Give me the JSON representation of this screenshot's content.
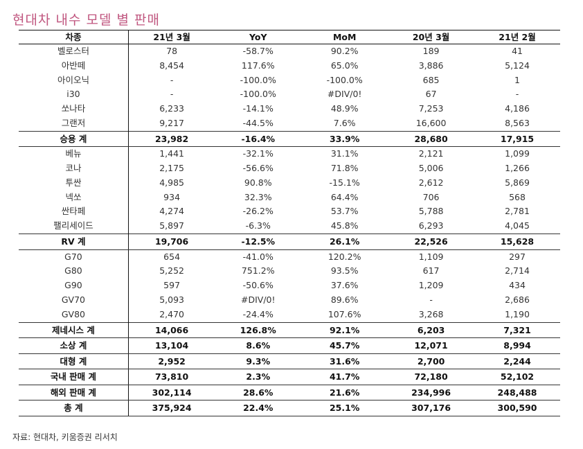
{
  "title": "현대차 내수 모델 별 판매",
  "table": {
    "headers": [
      "차종",
      "21년 3월",
      "YoY",
      "MoM",
      "20년 3월",
      "21년 2월"
    ],
    "rows": [
      {
        "cells": [
          "벨로스터",
          "78",
          "-58.7%",
          "90.2%",
          "189",
          "41"
        ],
        "total": false
      },
      {
        "cells": [
          "아반떼",
          "8,454",
          "117.6%",
          "65.0%",
          "3,886",
          "5,124"
        ],
        "total": false
      },
      {
        "cells": [
          "아이오닉",
          "-",
          "-100.0%",
          "-100.0%",
          "685",
          "1"
        ],
        "total": false
      },
      {
        "cells": [
          "i30",
          "-",
          "-100.0%",
          "#DIV/0!",
          "67",
          "-"
        ],
        "total": false
      },
      {
        "cells": [
          "쏘나타",
          "6,233",
          "-14.1%",
          "48.9%",
          "7,253",
          "4,186"
        ],
        "total": false
      },
      {
        "cells": [
          "그랜저",
          "9,217",
          "-44.5%",
          "7.6%",
          "16,600",
          "8,563"
        ],
        "total": false
      },
      {
        "cells": [
          "승용 계",
          "23,982",
          "-16.4%",
          "33.9%",
          "28,680",
          "17,915"
        ],
        "total": true
      },
      {
        "cells": [
          "베뉴",
          "1,441",
          "-32.1%",
          "31.1%",
          "2,121",
          "1,099"
        ],
        "total": false
      },
      {
        "cells": [
          "코나",
          "2,175",
          "-56.6%",
          "71.8%",
          "5,006",
          "1,266"
        ],
        "total": false
      },
      {
        "cells": [
          "투싼",
          "4,985",
          "90.8%",
          "-15.1%",
          "2,612",
          "5,869"
        ],
        "total": false
      },
      {
        "cells": [
          "넥쏘",
          "934",
          "32.3%",
          "64.4%",
          "706",
          "568"
        ],
        "total": false
      },
      {
        "cells": [
          "싼타페",
          "4,274",
          "-26.2%",
          "53.7%",
          "5,788",
          "2,781"
        ],
        "total": false
      },
      {
        "cells": [
          "팰리세이드",
          "5,897",
          "-6.3%",
          "45.8%",
          "6,293",
          "4,045"
        ],
        "total": false
      },
      {
        "cells": [
          "RV 계",
          "19,706",
          "-12.5%",
          "26.1%",
          "22,526",
          "15,628"
        ],
        "total": true
      },
      {
        "cells": [
          "G70",
          "654",
          "-41.0%",
          "120.2%",
          "1,109",
          "297"
        ],
        "total": false
      },
      {
        "cells": [
          "G80",
          "5,252",
          "751.2%",
          "93.5%",
          "617",
          "2,714"
        ],
        "total": false
      },
      {
        "cells": [
          "G90",
          "597",
          "-50.6%",
          "37.6%",
          "1,209",
          "434"
        ],
        "total": false
      },
      {
        "cells": [
          "GV70",
          "5,093",
          "#DIV/0!",
          "89.6%",
          "-",
          "2,686"
        ],
        "total": false
      },
      {
        "cells": [
          "GV80",
          "2,470",
          "-24.4%",
          "107.6%",
          "3,268",
          "1,190"
        ],
        "total": false
      },
      {
        "cells": [
          "제네시스 계",
          "14,066",
          "126.8%",
          "92.1%",
          "6,203",
          "7,321"
        ],
        "total": true
      },
      {
        "cells": [
          "소상 계",
          "13,104",
          "8.6%",
          "45.7%",
          "12,071",
          "8,994"
        ],
        "total": true
      },
      {
        "cells": [
          "대형 계",
          "2,952",
          "9.3%",
          "31.6%",
          "2,700",
          "2,244"
        ],
        "total": true
      },
      {
        "cells": [
          "국내 판매 계",
          "73,810",
          "2.3%",
          "41.7%",
          "72,180",
          "52,102"
        ],
        "total": true
      },
      {
        "cells": [
          "해외 판매 계",
          "302,114",
          "28.6%",
          "21.6%",
          "234,996",
          "248,488"
        ],
        "total": true
      },
      {
        "cells": [
          "총 계",
          "375,924",
          "22.4%",
          "25.1%",
          "307,176",
          "300,590"
        ],
        "total": true
      }
    ]
  },
  "source": "자료: 현대차, 키움증권 리서치",
  "colors": {
    "title": "#C0567F",
    "rule": "#111111"
  }
}
